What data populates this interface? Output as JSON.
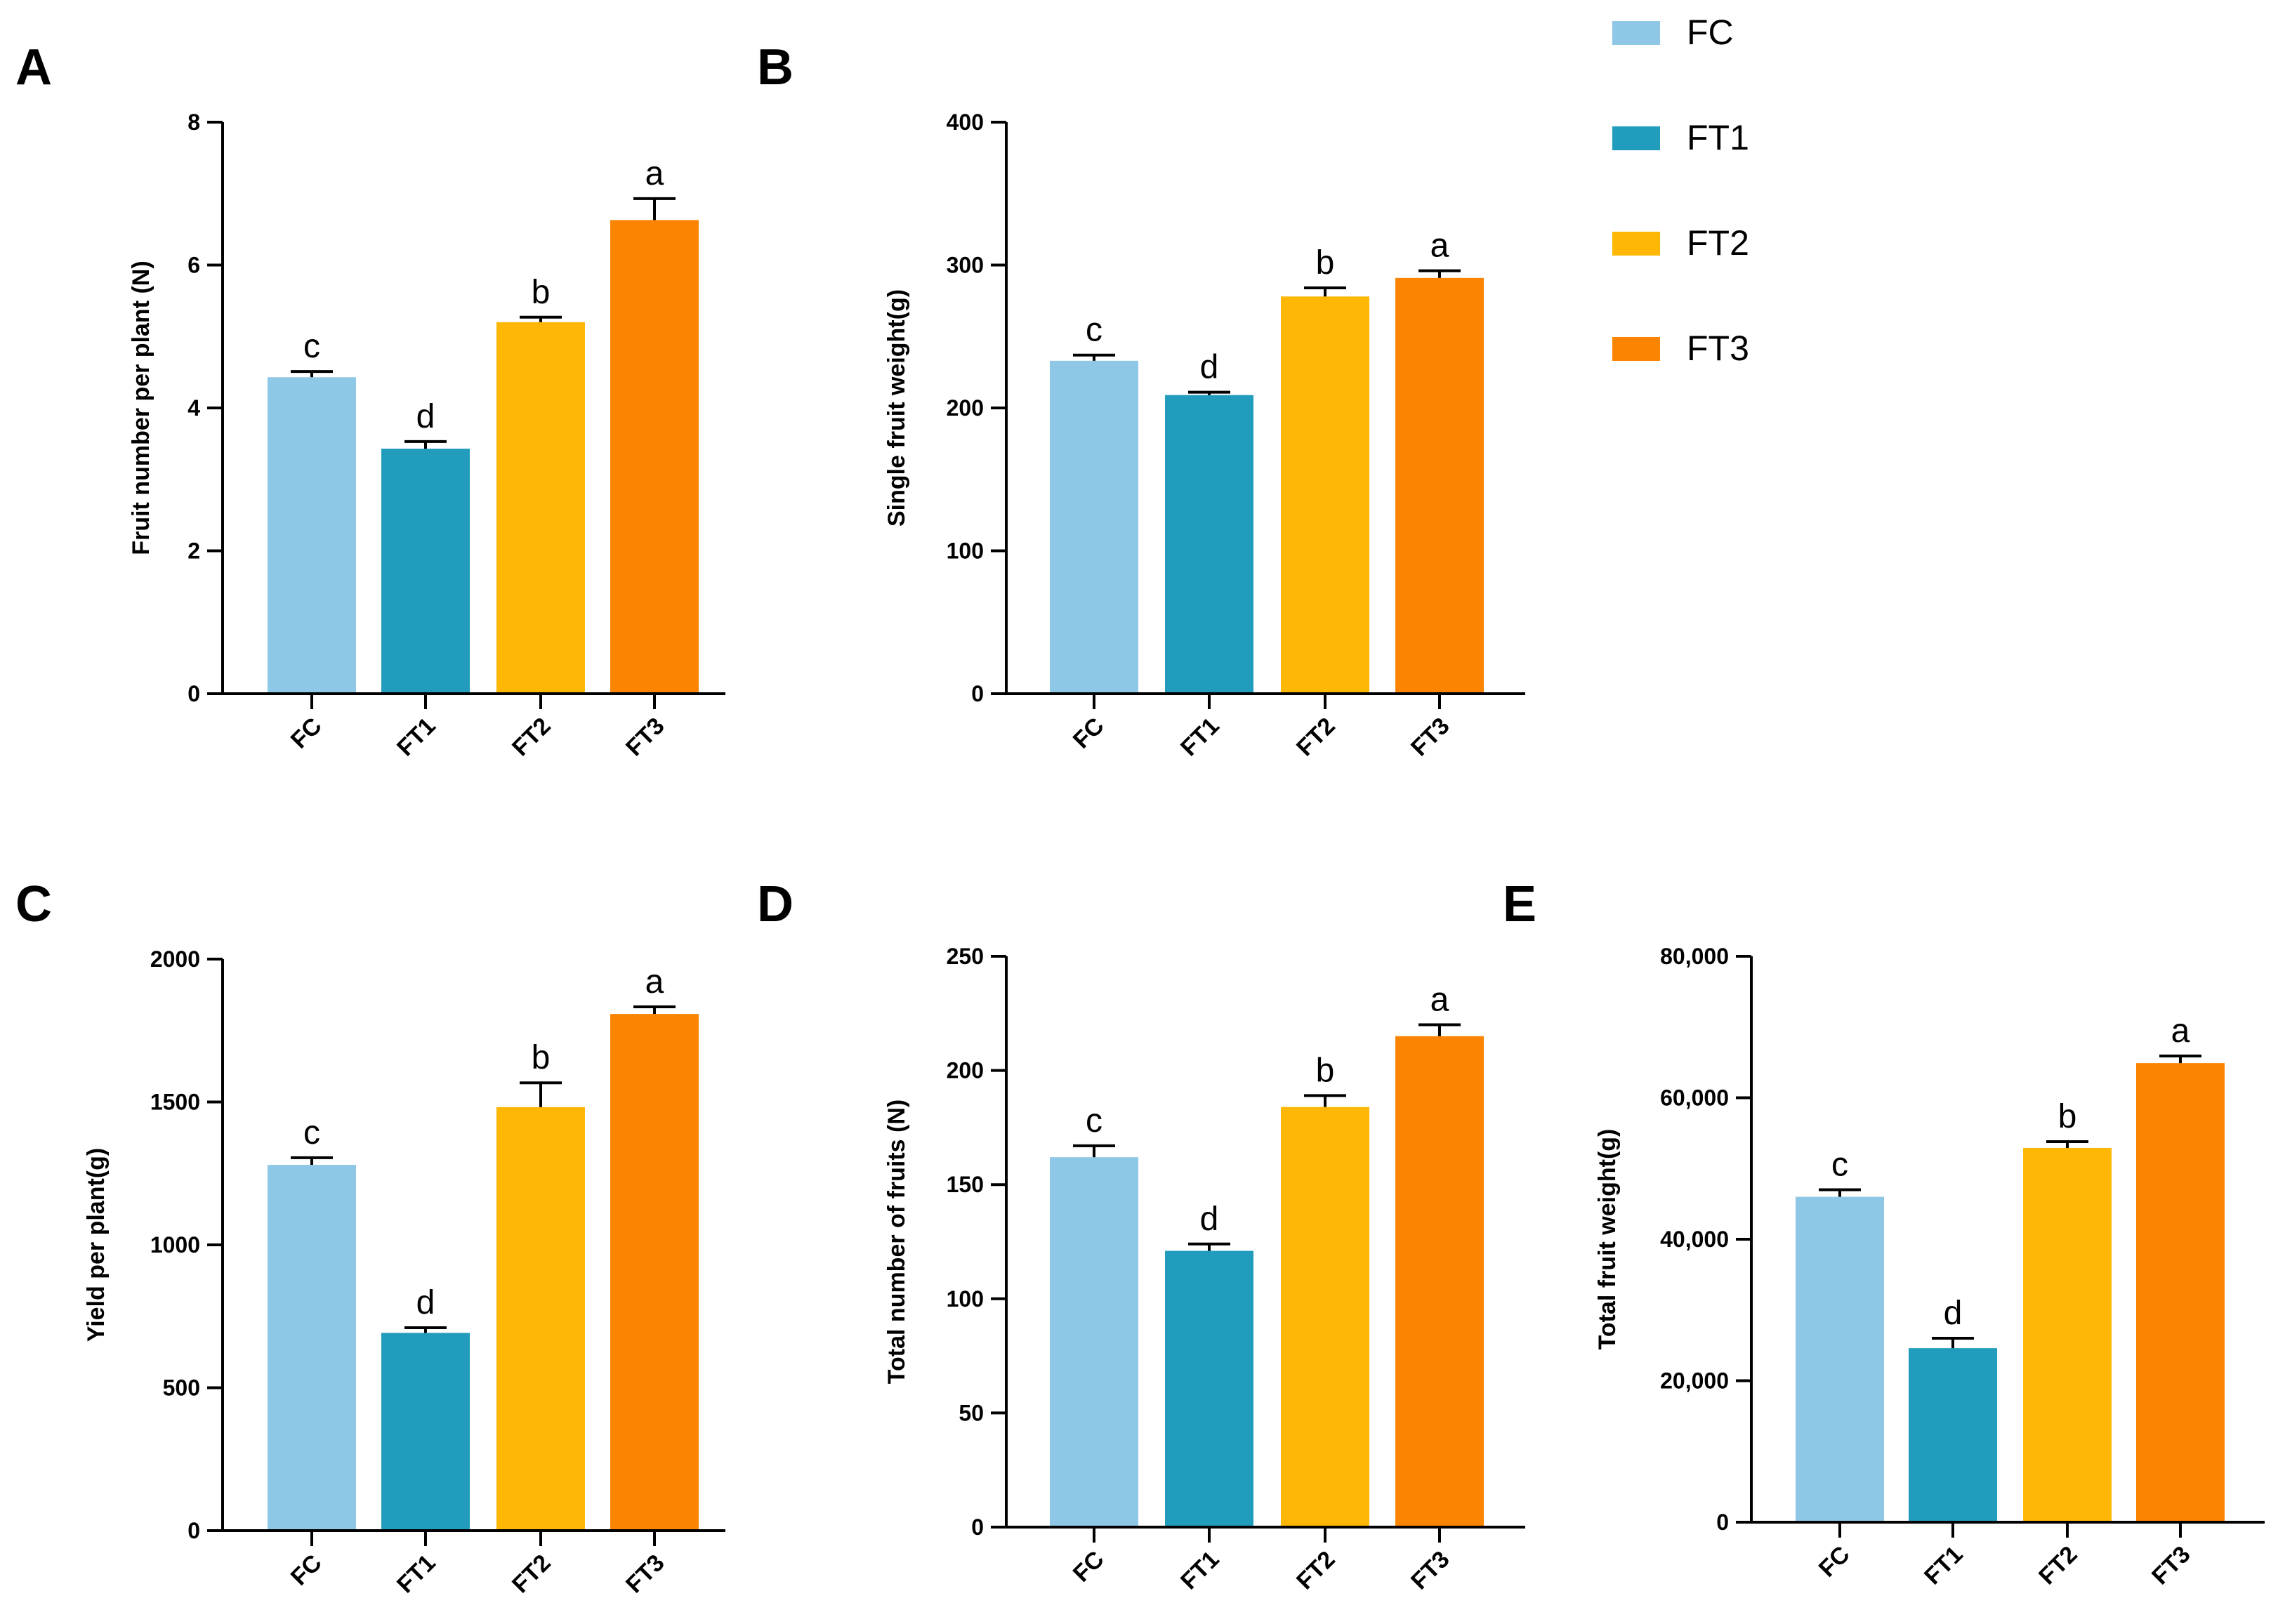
{
  "legend": [
    {
      "name": "FC",
      "color": "#8ec8e6"
    },
    {
      "name": "FT1",
      "color": "#219cbc"
    },
    {
      "name": "FT2",
      "color": "#feb704"
    },
    {
      "name": "FT3",
      "color": "#fb8503"
    }
  ],
  "chart_data": [
    {
      "panel": "A",
      "type": "bar",
      "categories": [
        "FC",
        "FT1",
        "FT2",
        "FT3"
      ],
      "values": [
        4.43,
        3.43,
        5.2,
        6.63
      ],
      "errors": [
        0.08,
        0.1,
        0.07,
        0.3
      ],
      "significance": [
        "c",
        "d",
        "b",
        "a"
      ],
      "ylabel": "Fruit number per plant (N)",
      "ylim": [
        0,
        8
      ],
      "yticks": [
        0,
        2,
        4,
        6,
        8
      ],
      "ytick_labels": [
        "0",
        "2",
        "4",
        "6",
        "8"
      ]
    },
    {
      "panel": "B",
      "type": "bar",
      "categories": [
        "FC",
        "FT1",
        "FT2",
        "FT3"
      ],
      "values": [
        233,
        209,
        278,
        291
      ],
      "errors": [
        4,
        2,
        6,
        5
      ],
      "significance": [
        "c",
        "d",
        "b",
        "a"
      ],
      "ylabel": "Single fruit weight(g)",
      "ylim": [
        0,
        400
      ],
      "yticks": [
        0,
        100,
        200,
        300,
        400
      ],
      "ytick_labels": [
        "0",
        "100",
        "200",
        "300",
        "400"
      ]
    },
    {
      "panel": "C",
      "type": "bar",
      "categories": [
        "FC",
        "FT1",
        "FT2",
        "FT3"
      ],
      "values": [
        1280,
        692,
        1482,
        1808
      ],
      "errors": [
        25,
        18,
        85,
        25
      ],
      "significance": [
        "c",
        "d",
        "b",
        "a"
      ],
      "ylabel": "Yield per plant(g)",
      "ylim": [
        0,
        2000
      ],
      "yticks": [
        0,
        500,
        1000,
        1500,
        2000
      ],
      "ytick_labels": [
        "0",
        "500",
        "1000",
        "1500",
        "2000"
      ]
    },
    {
      "panel": "D",
      "type": "bar",
      "categories": [
        "FC",
        "FT1",
        "FT2",
        "FT3"
      ],
      "values": [
        162,
        121,
        184,
        215
      ],
      "errors": [
        5,
        3,
        5,
        5
      ],
      "significance": [
        "c",
        "d",
        "b",
        "a"
      ],
      "ylabel": "Total number of fruits (N)",
      "ylim": [
        0,
        250
      ],
      "yticks": [
        0,
        50,
        100,
        150,
        200,
        250
      ],
      "ytick_labels": [
        "0",
        "50",
        "100",
        "150",
        "200",
        "250"
      ]
    },
    {
      "panel": "E",
      "type": "bar",
      "categories": [
        "FC",
        "FT1",
        "FT2",
        "FT3"
      ],
      "values": [
        46000,
        24600,
        52900,
        64900
      ],
      "errors": [
        1000,
        1400,
        900,
        1000
      ],
      "significance": [
        "c",
        "d",
        "b",
        "a"
      ],
      "ylabel": "Total fruit weight(g)",
      "ylim": [
        0,
        80000
      ],
      "yticks": [
        0,
        20000,
        40000,
        60000,
        80000
      ],
      "ytick_labels": [
        "0",
        "20,000",
        "40,000",
        "60,000",
        "80,000"
      ]
    }
  ]
}
